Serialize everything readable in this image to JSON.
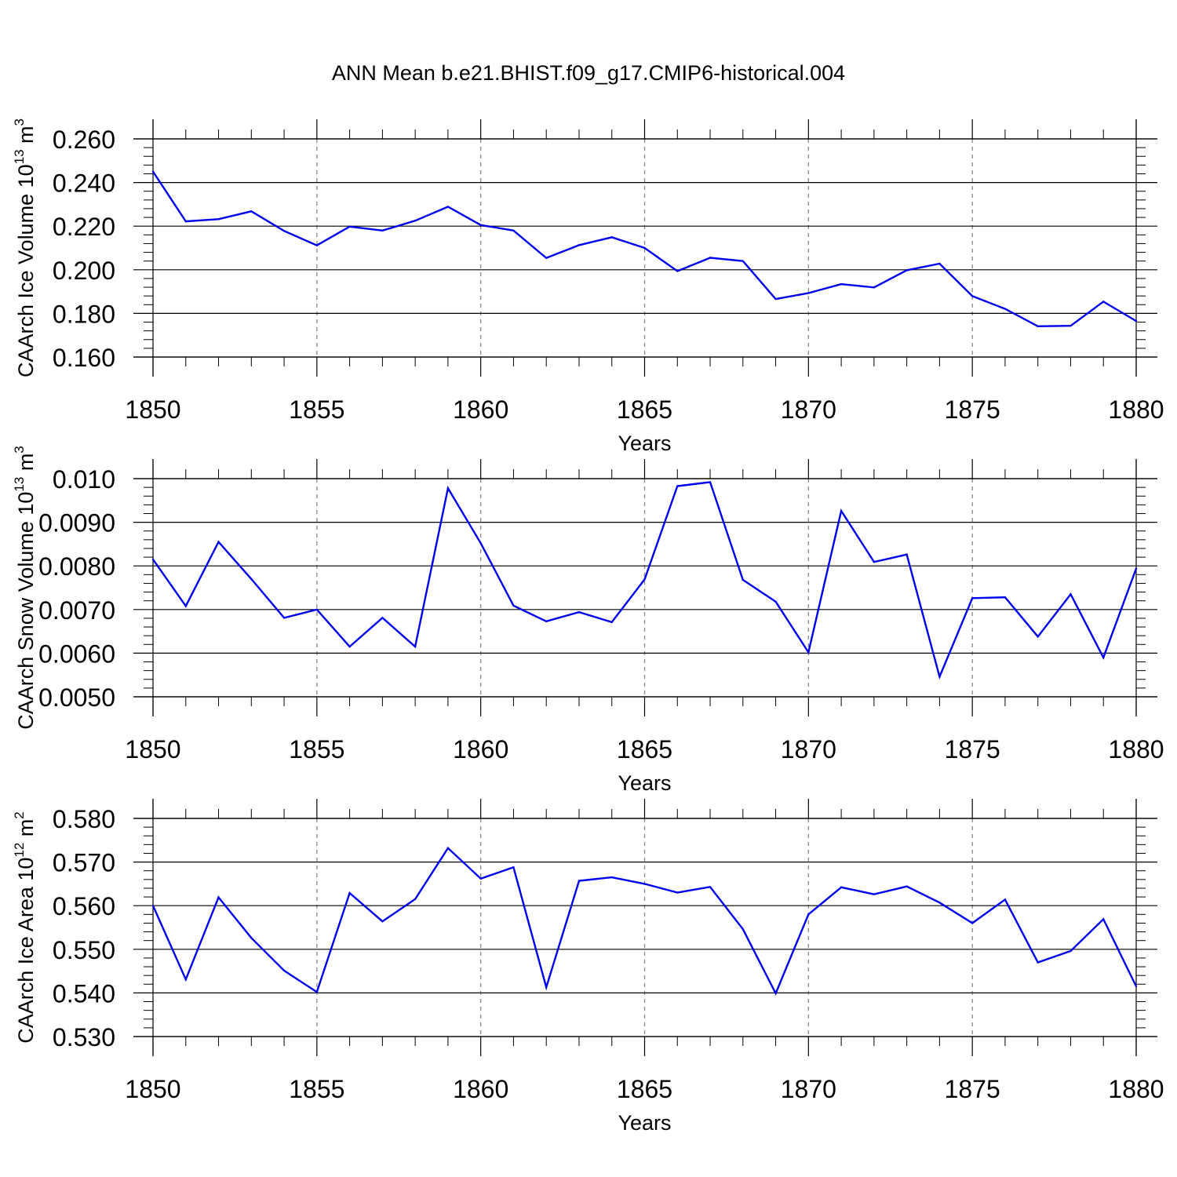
{
  "title": "ANN Mean b.e21.BHIST.f09_g17.CMIP6-historical.004",
  "line_color": "#0000ee",
  "chart_data": [
    {
      "type": "line",
      "ylabel": "CAArch Ice Volume",
      "ylabel_unit": "10",
      "ylabel_exp": "13",
      "ylabel_m": "m",
      "ylabel_mexp": "3",
      "xlabel": "Years",
      "xlim": [
        1850,
        1880
      ],
      "ylim": [
        0.16,
        0.26
      ],
      "xticks": [
        1850,
        1855,
        1860,
        1865,
        1870,
        1875,
        1880
      ],
      "yticks": [
        "0.160",
        "0.180",
        "0.200",
        "0.220",
        "0.240",
        "0.260"
      ],
      "ytick_values": [
        0.16,
        0.18,
        0.2,
        0.22,
        0.24,
        0.26
      ],
      "grid": "vertical dashed at major x ticks",
      "x": [
        1850,
        1851,
        1852,
        1853,
        1854,
        1855,
        1856,
        1857,
        1858,
        1859,
        1860,
        1861,
        1862,
        1863,
        1864,
        1865,
        1866,
        1867,
        1868,
        1869,
        1870,
        1871,
        1872,
        1873,
        1874,
        1875,
        1876,
        1877,
        1878,
        1879,
        1880
      ],
      "values": [
        0.245,
        0.2222,
        0.2232,
        0.2268,
        0.2178,
        0.2112,
        0.2198,
        0.218,
        0.2225,
        0.2289,
        0.2205,
        0.218,
        0.2054,
        0.2113,
        0.2149,
        0.21,
        0.1994,
        0.2055,
        0.204,
        0.1866,
        0.1893,
        0.1934,
        0.1919,
        0.1998,
        0.2028,
        0.1879,
        0.1821,
        0.1741,
        0.1743,
        0.1854,
        0.1765
      ]
    },
    {
      "type": "line",
      "ylabel": "CAArch Snow Volume",
      "ylabel_unit": "10",
      "ylabel_exp": "13",
      "ylabel_m": "m",
      "ylabel_mexp": "3",
      "xlabel": "Years",
      "xlim": [
        1850,
        1880
      ],
      "ylim": [
        0.005,
        0.01
      ],
      "xticks": [
        1850,
        1855,
        1860,
        1865,
        1870,
        1875,
        1880
      ],
      "yticks": [
        "0.0050",
        "0.0060",
        "0.0070",
        "0.0080",
        "0.0090",
        "0.010"
      ],
      "ytick_values": [
        0.005,
        0.006,
        0.007,
        0.008,
        0.009,
        0.01
      ],
      "grid": "vertical dashed at major x ticks",
      "x": [
        1850,
        1851,
        1852,
        1853,
        1854,
        1855,
        1856,
        1857,
        1858,
        1859,
        1860,
        1861,
        1862,
        1863,
        1864,
        1865,
        1866,
        1867,
        1868,
        1869,
        1870,
        1871,
        1872,
        1873,
        1874,
        1875,
        1876,
        1877,
        1878,
        1879,
        1880
      ],
      "values": [
        0.00815,
        0.00708,
        0.00855,
        0.0077,
        0.00681,
        0.007,
        0.00615,
        0.00681,
        0.00615,
        0.00978,
        0.00852,
        0.00709,
        0.00673,
        0.00694,
        0.00671,
        0.00769,
        0.00983,
        0.00992,
        0.00768,
        0.00718,
        0.00602,
        0.00926,
        0.00809,
        0.00826,
        0.00546,
        0.00726,
        0.00728,
        0.00638,
        0.00735,
        0.0059,
        0.00794
      ]
    },
    {
      "type": "line",
      "ylabel": "CAArch Ice Area",
      "ylabel_unit": "10",
      "ylabel_exp": "12",
      "ylabel_m": "m",
      "ylabel_mexp": "2",
      "xlabel": "Years",
      "xlim": [
        1850,
        1880
      ],
      "ylim": [
        0.53,
        0.58
      ],
      "xticks": [
        1850,
        1855,
        1860,
        1865,
        1870,
        1875,
        1880
      ],
      "yticks": [
        "0.530",
        "0.540",
        "0.550",
        "0.560",
        "0.570",
        "0.580"
      ],
      "ytick_values": [
        0.53,
        0.54,
        0.55,
        0.56,
        0.57,
        0.58
      ],
      "grid": "vertical dashed at major x ticks",
      "x": [
        1850,
        1851,
        1852,
        1853,
        1854,
        1855,
        1856,
        1857,
        1858,
        1859,
        1860,
        1861,
        1862,
        1863,
        1864,
        1865,
        1866,
        1867,
        1868,
        1869,
        1870,
        1871,
        1872,
        1873,
        1874,
        1875,
        1876,
        1877,
        1878,
        1879,
        1880
      ],
      "values": [
        0.56,
        0.5431,
        0.5619,
        0.5526,
        0.5451,
        0.5402,
        0.5629,
        0.5564,
        0.5615,
        0.5732,
        0.5662,
        0.5688,
        0.5413,
        0.5657,
        0.5665,
        0.565,
        0.563,
        0.5643,
        0.5546,
        0.5399,
        0.558,
        0.5642,
        0.5626,
        0.5644,
        0.5607,
        0.556,
        0.5614,
        0.547,
        0.5496,
        0.5569,
        0.5415
      ]
    }
  ]
}
